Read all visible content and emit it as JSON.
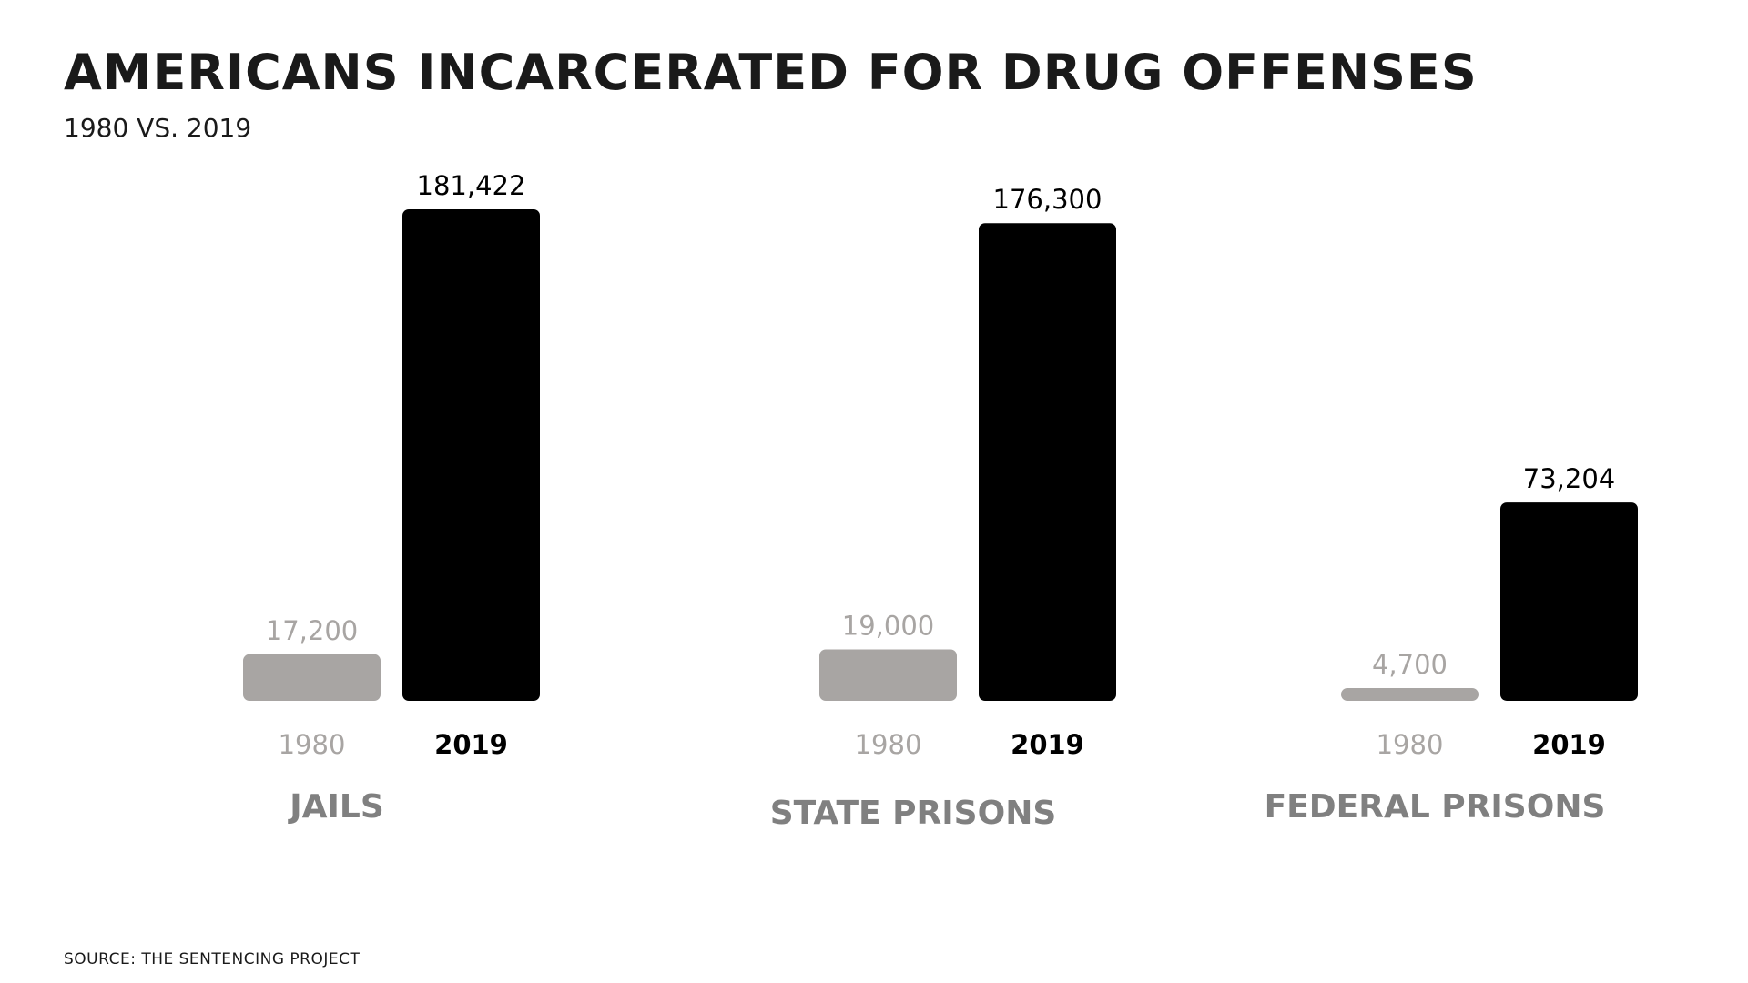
{
  "title": "AMERICANS INCARCERATED FOR DRUG OFFENSES",
  "subtitle": "1980 VS. 2019",
  "source": "SOURCE: THE SENTENCING PROJECT",
  "colors": {
    "series_1980": "#a8a5a3",
    "series_2019": "#000000",
    "label_1980": "#a8a5a3",
    "label_2019": "#000000",
    "group_label": "#808080"
  },
  "chart_data": {
    "type": "bar",
    "categories": [
      "JAILS",
      "STATE PRISONS",
      "FEDERAL PRISONS"
    ],
    "series": [
      {
        "name": "1980",
        "values": [
          17200,
          19000,
          4700
        ],
        "value_labels": [
          "17,200",
          "19,000",
          "4,700"
        ]
      },
      {
        "name": "2019",
        "values": [
          181422,
          176300,
          73204
        ],
        "value_labels": [
          "181,422",
          "176,300",
          "73,204"
        ]
      }
    ],
    "title": "AMERICANS INCARCERATED FOR DRUG OFFENSES",
    "subtitle": "1980 VS. 2019",
    "xlabel": "",
    "ylabel": "",
    "ylim": [
      0,
      181422
    ],
    "grid": false,
    "legend": "none"
  }
}
